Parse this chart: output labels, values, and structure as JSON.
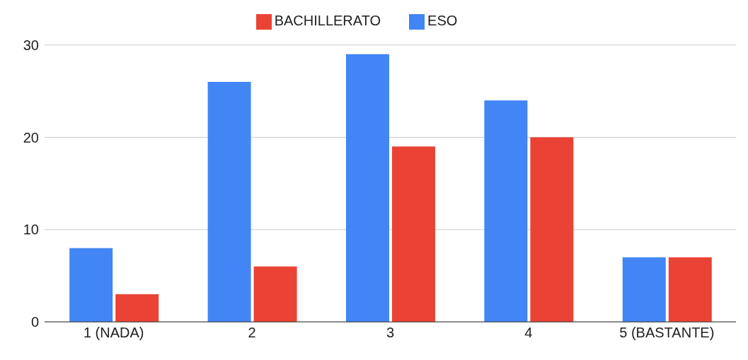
{
  "chart_data": {
    "type": "bar",
    "categories": [
      "1 (NADA)",
      "2",
      "3",
      "4",
      "5 (BASTANTE)"
    ],
    "series": [
      {
        "name": "ESO",
        "color": "#4285f4",
        "values": [
          8,
          26,
          29,
          24,
          7
        ]
      },
      {
        "name": "BACHILLERATO",
        "color": "#ea4335",
        "values": [
          3,
          6,
          19,
          20,
          7
        ]
      }
    ],
    "ylim": [
      0,
      30
    ],
    "yticks": [
      0,
      10,
      20,
      30
    ],
    "grid": "y",
    "legend": "top"
  }
}
